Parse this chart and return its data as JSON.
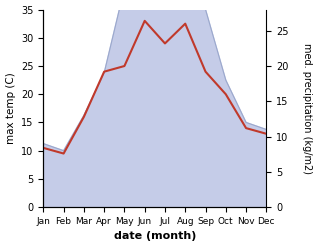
{
  "months": [
    "Jan",
    "Feb",
    "Mar",
    "Apr",
    "May",
    "Jun",
    "Jul",
    "Aug",
    "Sep",
    "Oct",
    "Nov",
    "Dec"
  ],
  "month_x": [
    0,
    1,
    2,
    3,
    4,
    5,
    6,
    7,
    8,
    9,
    10,
    11
  ],
  "temp": [
    10.5,
    9.5,
    16.0,
    24.0,
    25.0,
    33.0,
    29.0,
    32.5,
    24.0,
    20.0,
    14.0,
    13.0
  ],
  "precip": [
    9,
    8,
    13,
    19,
    31,
    38,
    37,
    43,
    28,
    18,
    12,
    11
  ],
  "temp_color": "#c0392b",
  "precip_fill_color": "#c5cce8",
  "precip_edge_color": "#9ba8cc",
  "temp_ylim": [
    0,
    35
  ],
  "precip_ylim": [
    0,
    28
  ],
  "temp_yticks": [
    0,
    5,
    10,
    15,
    20,
    25,
    30,
    35
  ],
  "precip_yticks": [
    0,
    5,
    10,
    15,
    20,
    25
  ],
  "xlabel": "date (month)",
  "ylabel_left": "max temp (C)",
  "ylabel_right": "med. precipitation (kg/m2)",
  "figsize": [
    3.18,
    2.47
  ],
  "dpi": 100
}
